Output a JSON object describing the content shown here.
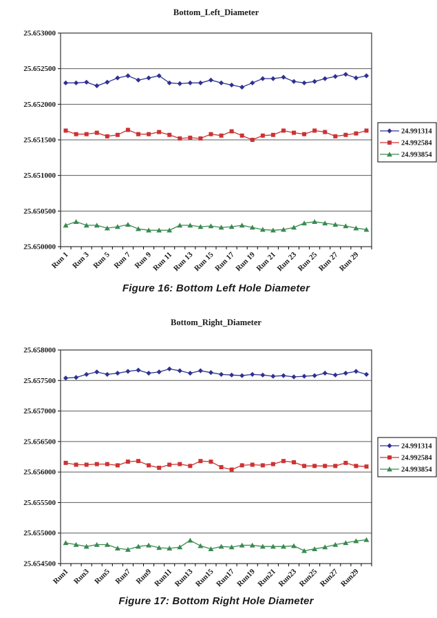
{
  "page": {
    "background": "#ffffff",
    "text_color": "#1a1a1a"
  },
  "figures": [
    {
      "caption": "Figure 16: Bottom Left Hole Diameter"
    },
    {
      "caption": "Figure 17: Bottom Right Hole Diameter"
    }
  ],
  "chart_data": [
    {
      "type": "line",
      "title": "Bottom_Left_Diameter",
      "xlabel": "",
      "ylabel": "",
      "ylim": [
        25.65,
        25.653
      ],
      "ytick_step": 0.0005,
      "ytick_decimals": 6,
      "grid": true,
      "legend_position": "right",
      "x_label_every": 2,
      "categories": [
        "Run 1",
        "Run 2",
        "Run 3",
        "Run 4",
        "Run 5",
        "Run 6",
        "Run 7",
        "Run 8",
        "Run 9",
        "Run 10",
        "Run 11",
        "Run 12",
        "Run 13",
        "Run 14",
        "Run 15",
        "Run 16",
        "Run 17",
        "Run 18",
        "Run 19",
        "Run 20",
        "Run 21",
        "Run 22",
        "Run 23",
        "Run 24",
        "Run 25",
        "Run 26",
        "Run 27",
        "Run 28",
        "Run 29",
        "Run 30"
      ],
      "series": [
        {
          "name": "24.991314",
          "color": "#2e3192",
          "marker": "diamond",
          "values": [
            25.6523,
            25.6523,
            25.65231,
            25.65226,
            25.65231,
            25.65237,
            25.6524,
            25.65234,
            25.65237,
            25.6524,
            25.6523,
            25.65229,
            25.6523,
            25.6523,
            25.65234,
            25.6523,
            25.65227,
            25.65224,
            25.6523,
            25.65236,
            25.65236,
            25.65238,
            25.65232,
            25.6523,
            25.65232,
            25.65236,
            25.65239,
            25.65242,
            25.65237,
            25.6524
          ]
        },
        {
          "name": "24.992584",
          "color": "#cc3333",
          "marker": "square",
          "values": [
            25.65163,
            25.65158,
            25.65158,
            25.6516,
            25.65155,
            25.65157,
            25.65164,
            25.65158,
            25.65158,
            25.65161,
            25.65157,
            25.65152,
            25.65153,
            25.65152,
            25.65158,
            25.65156,
            25.65162,
            25.65156,
            25.6515,
            25.65156,
            25.65157,
            25.65163,
            25.6516,
            25.65158,
            25.65163,
            25.65161,
            25.65155,
            25.65157,
            25.65159,
            25.65163
          ]
        },
        {
          "name": "24.993854",
          "color": "#3a8a50",
          "marker": "triangle",
          "values": [
            25.6503,
            25.65035,
            25.6503,
            25.6503,
            25.65026,
            25.65028,
            25.65031,
            25.65025,
            25.65023,
            25.65023,
            25.65023,
            25.6503,
            25.6503,
            25.65028,
            25.65029,
            25.65027,
            25.65028,
            25.6503,
            25.65027,
            25.65024,
            25.65023,
            25.65024,
            25.65027,
            25.65033,
            25.65035,
            25.65033,
            25.65031,
            25.65029,
            25.65026,
            25.65024
          ]
        }
      ]
    },
    {
      "type": "line",
      "title": "Bottom_Right_Diameter",
      "xlabel": "",
      "ylabel": "",
      "ylim": [
        25.6545,
        25.658
      ],
      "ytick_step": 0.0005,
      "ytick_decimals": 6,
      "grid": true,
      "legend_position": "right",
      "x_label_every": 2,
      "categories": [
        "Run1",
        "Run2",
        "Run3",
        "Run4",
        "Run5",
        "Run6",
        "Run7",
        "Run8",
        "Run9",
        "Run10",
        "Run11",
        "Run12",
        "Run13",
        "Run14",
        "Run15",
        "Run16",
        "Run17",
        "Run18",
        "Run19",
        "Run20",
        "Run21",
        "Run22",
        "Run23",
        "Run24",
        "Run25",
        "Run26",
        "Run27",
        "Run28",
        "Run29",
        "Run30"
      ],
      "series": [
        {
          "name": "24.991314",
          "color": "#2e3192",
          "marker": "diamond",
          "values": [
            25.65754,
            25.65755,
            25.6576,
            25.65764,
            25.6576,
            25.65762,
            25.65765,
            25.65767,
            25.65762,
            25.65764,
            25.65769,
            25.65766,
            25.65762,
            25.65766,
            25.65763,
            25.6576,
            25.65759,
            25.65758,
            25.6576,
            25.65759,
            25.65757,
            25.65758,
            25.65756,
            25.65757,
            25.65758,
            25.65762,
            25.65759,
            25.65762,
            25.65765,
            25.6576
          ]
        },
        {
          "name": "24.992584",
          "color": "#cc3333",
          "marker": "square",
          "values": [
            25.65615,
            25.65612,
            25.65612,
            25.65613,
            25.65613,
            25.65611,
            25.65617,
            25.65618,
            25.65611,
            25.65607,
            25.65612,
            25.65613,
            25.6561,
            25.65618,
            25.65617,
            25.65608,
            25.65604,
            25.65611,
            25.65612,
            25.65611,
            25.65613,
            25.65618,
            25.65616,
            25.6561,
            25.6561,
            25.6561,
            25.6561,
            25.65615,
            25.6561,
            25.65609
          ]
        },
        {
          "name": "24.993854",
          "color": "#3a8a50",
          "marker": "triangle",
          "values": [
            25.65484,
            25.65481,
            25.65478,
            25.65481,
            25.65481,
            25.65475,
            25.65473,
            25.65478,
            25.6548,
            25.65476,
            25.65475,
            25.65477,
            25.65488,
            25.65479,
            25.65474,
            25.65478,
            25.65477,
            25.6548,
            25.6548,
            25.65478,
            25.65478,
            25.65478,
            25.65479,
            25.65471,
            25.65474,
            25.65477,
            25.65481,
            25.65484,
            25.65487,
            25.65489
          ]
        }
      ]
    }
  ],
  "style": {
    "gridline_color": "#595959",
    "plot_border_color": "#333333",
    "axis_color": "#000000",
    "legend_border_color": "#000000"
  }
}
